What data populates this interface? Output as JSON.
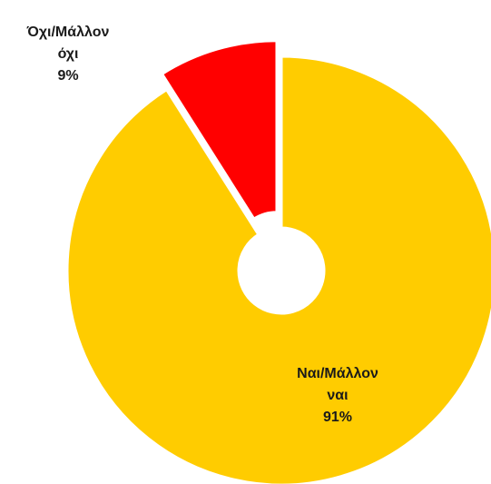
{
  "chart_data": {
    "type": "donut",
    "categories": [
      "Ναι/Μάλλον ναι",
      "Όχι/Μάλλον όχι"
    ],
    "values": [
      91,
      9
    ],
    "value_labels": [
      "91%",
      "9%"
    ],
    "colors": [
      "#FFCC00",
      "#FF0000"
    ]
  }
}
